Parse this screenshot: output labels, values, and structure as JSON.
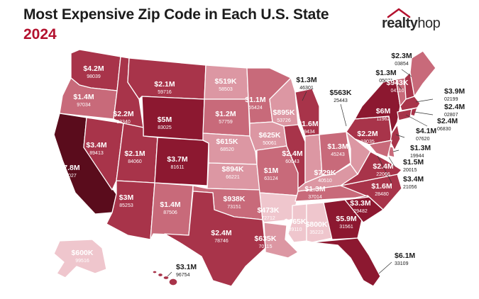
{
  "header": {
    "title": "Most Expensive Zip Code in Each U.S. State",
    "year": "2024",
    "logo_text_bold": "realty",
    "logo_text_light": "hop"
  },
  "colors": {
    "darkest": "#5a0c1c",
    "dark": "#8c1830",
    "medium": "#a8344a",
    "light": "#c86a7a",
    "lighter": "#dc97a3",
    "lightest": "#efc6cd",
    "title": "#1c1c1c",
    "accent": "#b3112e"
  },
  "states": [
    {
      "id": "WA",
      "price": "$4.2M",
      "zip": "98039"
    },
    {
      "id": "OR",
      "price": "$1.4M",
      "zip": "97034"
    },
    {
      "id": "CA",
      "price": "$7.8M",
      "zip": "94027"
    },
    {
      "id": "NV",
      "price": "$3.4M",
      "zip": "89413"
    },
    {
      "id": "ID",
      "price": "$2.2M",
      "zip": "83340"
    },
    {
      "id": "MT",
      "price": "$2.1M",
      "zip": "59716"
    },
    {
      "id": "WY",
      "price": "$5M",
      "zip": "83025"
    },
    {
      "id": "UT",
      "price": "$2.1M",
      "zip": "84060"
    },
    {
      "id": "CO",
      "price": "$3.7M",
      "zip": "81611"
    },
    {
      "id": "AZ",
      "price": "$3M",
      "zip": "85253"
    },
    {
      "id": "NM",
      "price": "$1.4M",
      "zip": "87506"
    },
    {
      "id": "ND",
      "price": "$519K",
      "zip": "58503"
    },
    {
      "id": "SD",
      "price": "$1.2M",
      "zip": "57759"
    },
    {
      "id": "NE",
      "price": "$615K",
      "zip": "68520"
    },
    {
      "id": "KS",
      "price": "$894K",
      "zip": "66221"
    },
    {
      "id": "OK",
      "price": "$938K",
      "zip": "73151"
    },
    {
      "id": "TX",
      "price": "$2.4M",
      "zip": "78746"
    },
    {
      "id": "MN",
      "price": "$1.1M",
      "zip": "55424"
    },
    {
      "id": "IA",
      "price": "$625K",
      "zip": "50061"
    },
    {
      "id": "MO",
      "price": "$1M",
      "zip": "63124"
    },
    {
      "id": "AR",
      "price": "$473K",
      "zip": "72712"
    },
    {
      "id": "LA",
      "price": "$635K",
      "zip": "70115"
    },
    {
      "id": "WI",
      "price": "$895K",
      "zip": "53726"
    },
    {
      "id": "IL",
      "price": "$2.4M",
      "zip": "60043"
    },
    {
      "id": "MI",
      "price": "$1.6M",
      "zip": "49434"
    },
    {
      "id": "IN",
      "price": "$1.3M",
      "zip": "46301"
    },
    {
      "id": "OH",
      "price": "$1.3M",
      "zip": "45243"
    },
    {
      "id": "KY",
      "price": "$729K",
      "zip": "40510"
    },
    {
      "id": "TN",
      "price": "$1.3M",
      "zip": "37014"
    },
    {
      "id": "MS",
      "price": "$465K",
      "zip": "39110"
    },
    {
      "id": "AL",
      "price": "$800K",
      "zip": "35223"
    },
    {
      "id": "GA",
      "price": "$5.9M",
      "zip": "31561"
    },
    {
      "id": "FL",
      "price": "$6.1M",
      "zip": "33109"
    },
    {
      "id": "SC",
      "price": "$3.3M",
      "zip": "29482"
    },
    {
      "id": "NC",
      "price": "$1.6M",
      "zip": "28480"
    },
    {
      "id": "VA",
      "price": "$2.4M",
      "zip": "22066"
    },
    {
      "id": "WV",
      "price": "$563K",
      "zip": "25443"
    },
    {
      "id": "PA",
      "price": "$2.2M",
      "zip": "19035"
    },
    {
      "id": "NY",
      "price": "$6M",
      "zip": "11962"
    },
    {
      "id": "VT",
      "price": "$1.3M",
      "zip": "05071"
    },
    {
      "id": "NH",
      "price": "$943K",
      "zip": "04110"
    },
    {
      "id": "ME",
      "price": "$2.3M",
      "zip": "03854"
    },
    {
      "id": "MA",
      "price": "$3.9M",
      "zip": "02199"
    },
    {
      "id": "RI",
      "price": "$2.4M",
      "zip": "02807"
    },
    {
      "id": "CT",
      "price": "$2.4M",
      "zip": "06830"
    },
    {
      "id": "NJ",
      "price": "$4.1M",
      "zip": "07620"
    },
    {
      "id": "DE",
      "price": "$1.3M",
      "zip": "19944"
    },
    {
      "id": "MD",
      "price": "$1.5M",
      "zip": "20015"
    },
    {
      "id": "DC",
      "price": "$3.4M",
      "zip": "21056"
    },
    {
      "id": "AK",
      "price": "$600K",
      "zip": "99516"
    },
    {
      "id": "HI",
      "price": "$3.1M",
      "zip": "96754"
    }
  ]
}
